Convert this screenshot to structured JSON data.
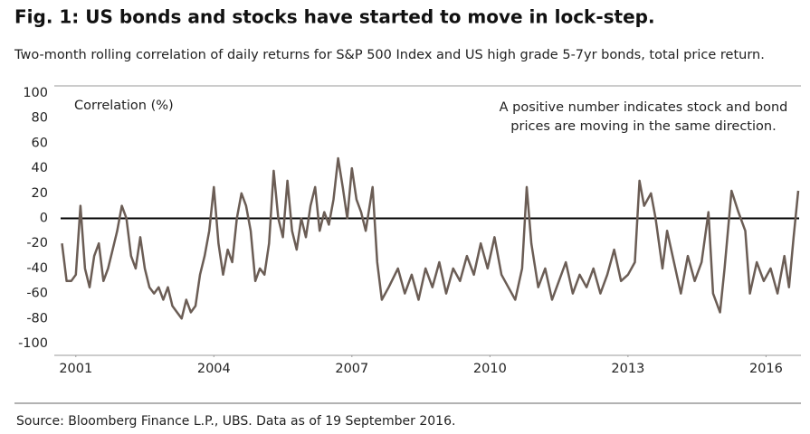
{
  "chart_data": {
    "type": "line",
    "title": "Fig. 1: US bonds and stocks have started to move in lock-step.",
    "subtitle": "Two-month rolling correlation of daily returns for S&P 500 Index and US high grade 5-7yr bonds, total price return.",
    "y_label": "Correlation (%)",
    "annotation": [
      "A positive number indicates stock and bond",
      "prices are moving in the same direction."
    ],
    "source": "Source: Bloomberg Finance L.P., UBS. Data as of 19 September 2016.",
    "color": "#6b5d55",
    "x": [
      2000.7,
      2000.8,
      2000.9,
      2001.0,
      2001.1,
      2001.2,
      2001.3,
      2001.4,
      2001.5,
      2001.6,
      2001.7,
      2001.8,
      2001.9,
      2002.0,
      2002.1,
      2002.2,
      2002.3,
      2002.4,
      2002.5,
      2002.6,
      2002.7,
      2002.8,
      2002.9,
      2003.0,
      2003.1,
      2003.2,
      2003.3,
      2003.4,
      2003.5,
      2003.6,
      2003.7,
      2003.8,
      2003.9,
      2004.0,
      2004.1,
      2004.2,
      2004.3,
      2004.4,
      2004.5,
      2004.6,
      2004.7,
      2004.8,
      2004.9,
      2005.0,
      2005.1,
      2005.2,
      2005.3,
      2005.4,
      2005.5,
      2005.6,
      2005.7,
      2005.8,
      2005.9,
      2006.0,
      2006.1,
      2006.2,
      2006.3,
      2006.4,
      2006.5,
      2006.6,
      2006.7,
      2006.8,
      2006.9,
      2007.0,
      2007.1,
      2007.2,
      2007.3,
      2007.45,
      2007.55,
      2007.65,
      2007.8,
      2008.0,
      2008.15,
      2008.3,
      2008.45,
      2008.6,
      2008.75,
      2008.9,
      2009.05,
      2009.2,
      2009.35,
      2009.5,
      2009.65,
      2009.8,
      2009.95,
      2010.1,
      2010.25,
      2010.4,
      2010.55,
      2010.7,
      2010.8,
      2010.9,
      2011.05,
      2011.2,
      2011.35,
      2011.5,
      2011.65,
      2011.8,
      2011.95,
      2012.1,
      2012.25,
      2012.4,
      2012.55,
      2012.7,
      2012.85,
      2013.0,
      2013.15,
      2013.25,
      2013.35,
      2013.5,
      2013.6,
      2013.75,
      2013.85,
      2014.0,
      2014.15,
      2014.3,
      2014.45,
      2014.6,
      2014.75,
      2014.85,
      2015.0,
      2015.1,
      2015.25,
      2015.4,
      2015.55,
      2015.65,
      2015.8,
      2015.95,
      2016.1,
      2016.25,
      2016.4,
      2016.5,
      2016.6,
      2016.7
    ],
    "values": [
      -20,
      -50,
      -50,
      -45,
      10,
      -40,
      -55,
      -30,
      -20,
      -50,
      -40,
      -25,
      -10,
      10,
      0,
      -30,
      -40,
      -15,
      -40,
      -55,
      -60,
      -55,
      -65,
      -55,
      -70,
      -75,
      -80,
      -65,
      -75,
      -70,
      -45,
      -30,
      -10,
      25,
      -20,
      -45,
      -25,
      -35,
      0,
      20,
      10,
      -10,
      -50,
      -40,
      -45,
      -20,
      38,
      0,
      -15,
      30,
      -10,
      -25,
      0,
      -15,
      10,
      25,
      -10,
      5,
      -5,
      15,
      48,
      25,
      0,
      40,
      15,
      5,
      -10,
      25,
      -35,
      -65,
      -55,
      -40,
      -60,
      -45,
      -65,
      -40,
      -55,
      -35,
      -60,
      -40,
      -50,
      -30,
      -45,
      -20,
      -40,
      -15,
      -45,
      -55,
      -65,
      -40,
      25,
      -20,
      -55,
      -40,
      -65,
      -50,
      -35,
      -60,
      -45,
      -55,
      -40,
      -60,
      -45,
      -25,
      -50,
      -45,
      -35,
      30,
      10,
      20,
      0,
      -40,
      -10,
      -35,
      -60,
      -30,
      -50,
      -35,
      5,
      -60,
      -75,
      -40,
      22,
      5,
      -10,
      -60,
      -35,
      -50,
      -40,
      -60,
      -30,
      -55,
      -15,
      22
    ],
    "xlim": [
      2000.67,
      2016.72
    ],
    "xticks": [
      2001,
      2004,
      2007,
      2010,
      2013,
      2016
    ],
    "ylim": [
      -100,
      100
    ],
    "yticks": [
      -100,
      -80,
      -60,
      -40,
      -20,
      0,
      20,
      40,
      60,
      80,
      100
    ],
    "grid": false
  }
}
